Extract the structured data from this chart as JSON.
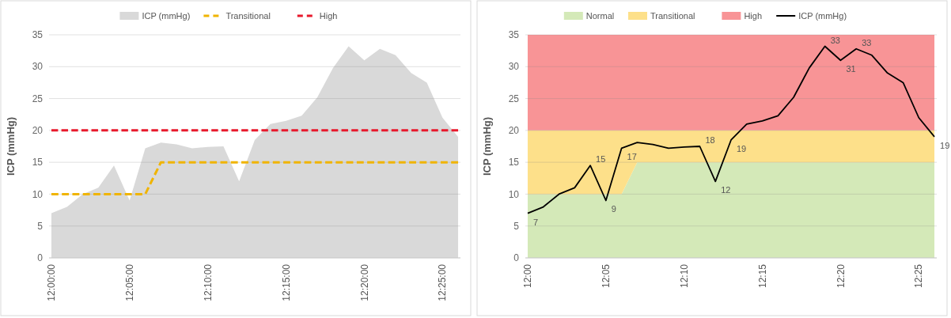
{
  "chart_data": [
    {
      "type": "area",
      "ylabel": "ICP (mmHg)",
      "legend": "top",
      "grid": "y",
      "ylim": [
        0,
        35
      ],
      "yticks": [
        0,
        5,
        10,
        15,
        20,
        25,
        30,
        35
      ],
      "categories": [
        "12:00:00",
        null,
        null,
        null,
        null,
        "12:05:00",
        null,
        null,
        null,
        null,
        "12:10:00",
        null,
        null,
        null,
        null,
        "12:15:00",
        null,
        null,
        null,
        null,
        "12:20:00",
        null,
        null,
        null,
        null,
        "12:25:00",
        null
      ],
      "series": [
        {
          "name": "ICP (mmHg)",
          "color": "#d9d9d9",
          "values": [
            7,
            8,
            10,
            11,
            14.5,
            9,
            17.2,
            18.1,
            17.8,
            17.2,
            17.4,
            17.5,
            12,
            18.5,
            21,
            21.5,
            22.3,
            25.2,
            29.8,
            33.2,
            31,
            32.8,
            31.8,
            29,
            27.5,
            22,
            19
          ]
        },
        {
          "name": "Transitional",
          "type": "line",
          "line_style": "dashed",
          "color": "#f0b400",
          "values": [
            10,
            10,
            10,
            10,
            10,
            10,
            10,
            15,
            15,
            15,
            15,
            15,
            15,
            15,
            15,
            15,
            15,
            15,
            15,
            15,
            15,
            15,
            15,
            15,
            15,
            15,
            15
          ]
        },
        {
          "name": "High",
          "type": "line",
          "line_style": "dashed",
          "color": "#e8192c",
          "values": [
            20,
            20,
            20,
            20,
            20,
            20,
            20,
            20,
            20,
            20,
            20,
            20,
            20,
            20,
            20,
            20,
            20,
            20,
            20,
            20,
            20,
            20,
            20,
            20,
            20,
            20,
            20
          ]
        }
      ]
    },
    {
      "type": "area",
      "stacked": true,
      "ylabel": "ICP (mmHg)",
      "legend": "top",
      "grid": "y",
      "ylim": [
        0,
        35
      ],
      "yticks": [
        0,
        5,
        10,
        15,
        20,
        25,
        30,
        35
      ],
      "categories": [
        "12:00",
        null,
        null,
        null,
        null,
        "12:05",
        null,
        null,
        null,
        null,
        "12:10",
        null,
        null,
        null,
        null,
        "12:15",
        null,
        null,
        null,
        null,
        "12:20",
        null,
        null,
        null,
        null,
        "12:25",
        null
      ],
      "series": [
        {
          "name": "Normal",
          "color": "#d4e9b8",
          "values": [
            10,
            10,
            10,
            10,
            10,
            10,
            10,
            15,
            15,
            15,
            15,
            15,
            15,
            15,
            15,
            15,
            15,
            15,
            15,
            15,
            15,
            15,
            15,
            15,
            15,
            15,
            15
          ]
        },
        {
          "name": "Transitional",
          "color": "#fde08a",
          "values": [
            10,
            10,
            10,
            10,
            10,
            10,
            10,
            5,
            5,
            5,
            5,
            5,
            5,
            5,
            5,
            5,
            5,
            5,
            5,
            5,
            5,
            5,
            5,
            5,
            5,
            5,
            5
          ]
        },
        {
          "name": "High",
          "color": "#f89496",
          "values": [
            15,
            15,
            15,
            15,
            15,
            15,
            15,
            15,
            15,
            15,
            15,
            15,
            15,
            15,
            15,
            15,
            15,
            15,
            15,
            15,
            15,
            15,
            15,
            15,
            15,
            15,
            15
          ]
        },
        {
          "name": "ICP (mmHg)",
          "type": "line",
          "color": "#000000",
          "values": [
            7,
            8,
            10,
            11,
            14.5,
            9,
            17.2,
            18.1,
            17.8,
            17.2,
            17.4,
            17.5,
            12,
            18.5,
            21,
            21.5,
            22.3,
            25.2,
            29.8,
            33.2,
            31,
            32.8,
            31.8,
            29,
            27.5,
            22,
            19
          ],
          "value_labels": [
            "7",
            null,
            null,
            null,
            "15",
            "9",
            "17",
            null,
            null,
            null,
            null,
            "18",
            "12",
            "19",
            null,
            null,
            null,
            null,
            null,
            "33",
            "31",
            "33",
            null,
            null,
            null,
            null,
            "19"
          ]
        }
      ]
    }
  ]
}
